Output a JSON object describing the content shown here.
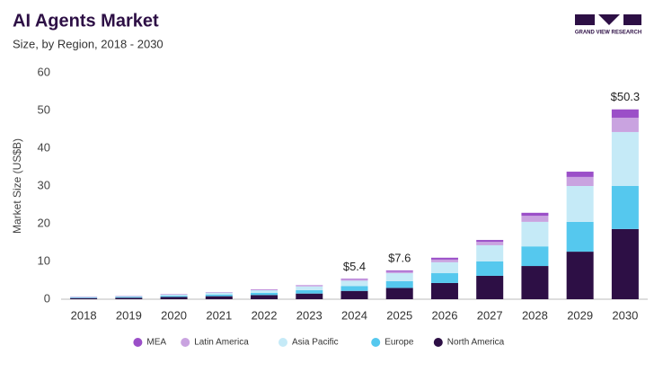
{
  "chart_data": {
    "type": "stacked_bar",
    "title": "AI Agents Market",
    "subtitle": "Size, by Region, 2018 - 2030",
    "logo": "GRAND VIEW RESEARCH",
    "y_label": "Market Size (US$B)",
    "categories": [
      "2018",
      "2019",
      "2020",
      "2021",
      "2022",
      "2023",
      "2024",
      "2025",
      "2026",
      "2027",
      "2028",
      "2029",
      "2030"
    ],
    "series": [
      {
        "name": "North America",
        "color": "#2d0f45",
        "values": [
          0.3,
          0.4,
          0.6,
          0.8,
          1.1,
          1.5,
          2.2,
          3.0,
          4.3,
          6.2,
          8.8,
          12.6,
          18.6
        ]
      },
      {
        "name": "Europe",
        "color": "#55c8ee",
        "values": [
          0.15,
          0.2,
          0.3,
          0.45,
          0.6,
          0.9,
          1.3,
          1.8,
          2.6,
          3.8,
          5.2,
          7.9,
          11.4
        ]
      },
      {
        "name": "Asia Pacific",
        "color": "#c5eaf7",
        "values": [
          0.15,
          0.2,
          0.35,
          0.5,
          0.7,
          1.0,
          1.4,
          2.1,
          2.9,
          4.3,
          6.5,
          9.5,
          14.3
        ]
      },
      {
        "name": "Latin America",
        "color": "#c9a3e0",
        "values": [
          0.05,
          0.05,
          0.1,
          0.1,
          0.1,
          0.2,
          0.3,
          0.4,
          0.7,
          0.9,
          1.6,
          2.4,
          3.8
        ]
      },
      {
        "name": "MEA",
        "color": "#9b4fc8",
        "values": [
          0.05,
          0.05,
          0.05,
          0.05,
          0.1,
          0.1,
          0.2,
          0.3,
          0.5,
          0.5,
          0.8,
          1.4,
          2.2
        ]
      }
    ],
    "annotations": [
      {
        "x": "2024",
        "text": "$5.4"
      },
      {
        "x": "2025",
        "text": "$7.6"
      },
      {
        "x": "2030",
        "text": "$50.3"
      }
    ],
    "ylim": [
      0,
      60
    ],
    "yticks": [
      0,
      10,
      20,
      30,
      40,
      50,
      60
    ],
    "grid": false,
    "legend": "bottom"
  }
}
